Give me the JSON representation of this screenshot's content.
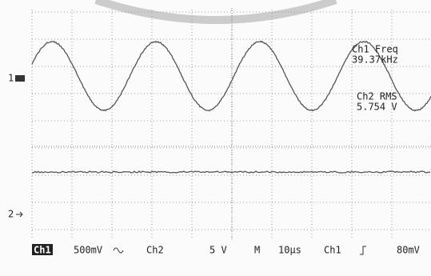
{
  "screen": {
    "markers": {
      "ch1": "1",
      "ch2": "2"
    },
    "readouts": [
      {
        "label": "Ch1 Freq",
        "value": "39.37kHz"
      },
      {
        "label": "Ch2 RMS",
        "value": "5.754 V"
      }
    ],
    "status": {
      "ch1": "Ch1",
      "ch1_scale": "500mV",
      "ch2": "Ch2",
      "ch2_scale": "5 V",
      "timebase_label": "M",
      "timebase": "10µs",
      "trigger_source": "Ch1",
      "trigger_level": "80mV"
    }
  }
}
